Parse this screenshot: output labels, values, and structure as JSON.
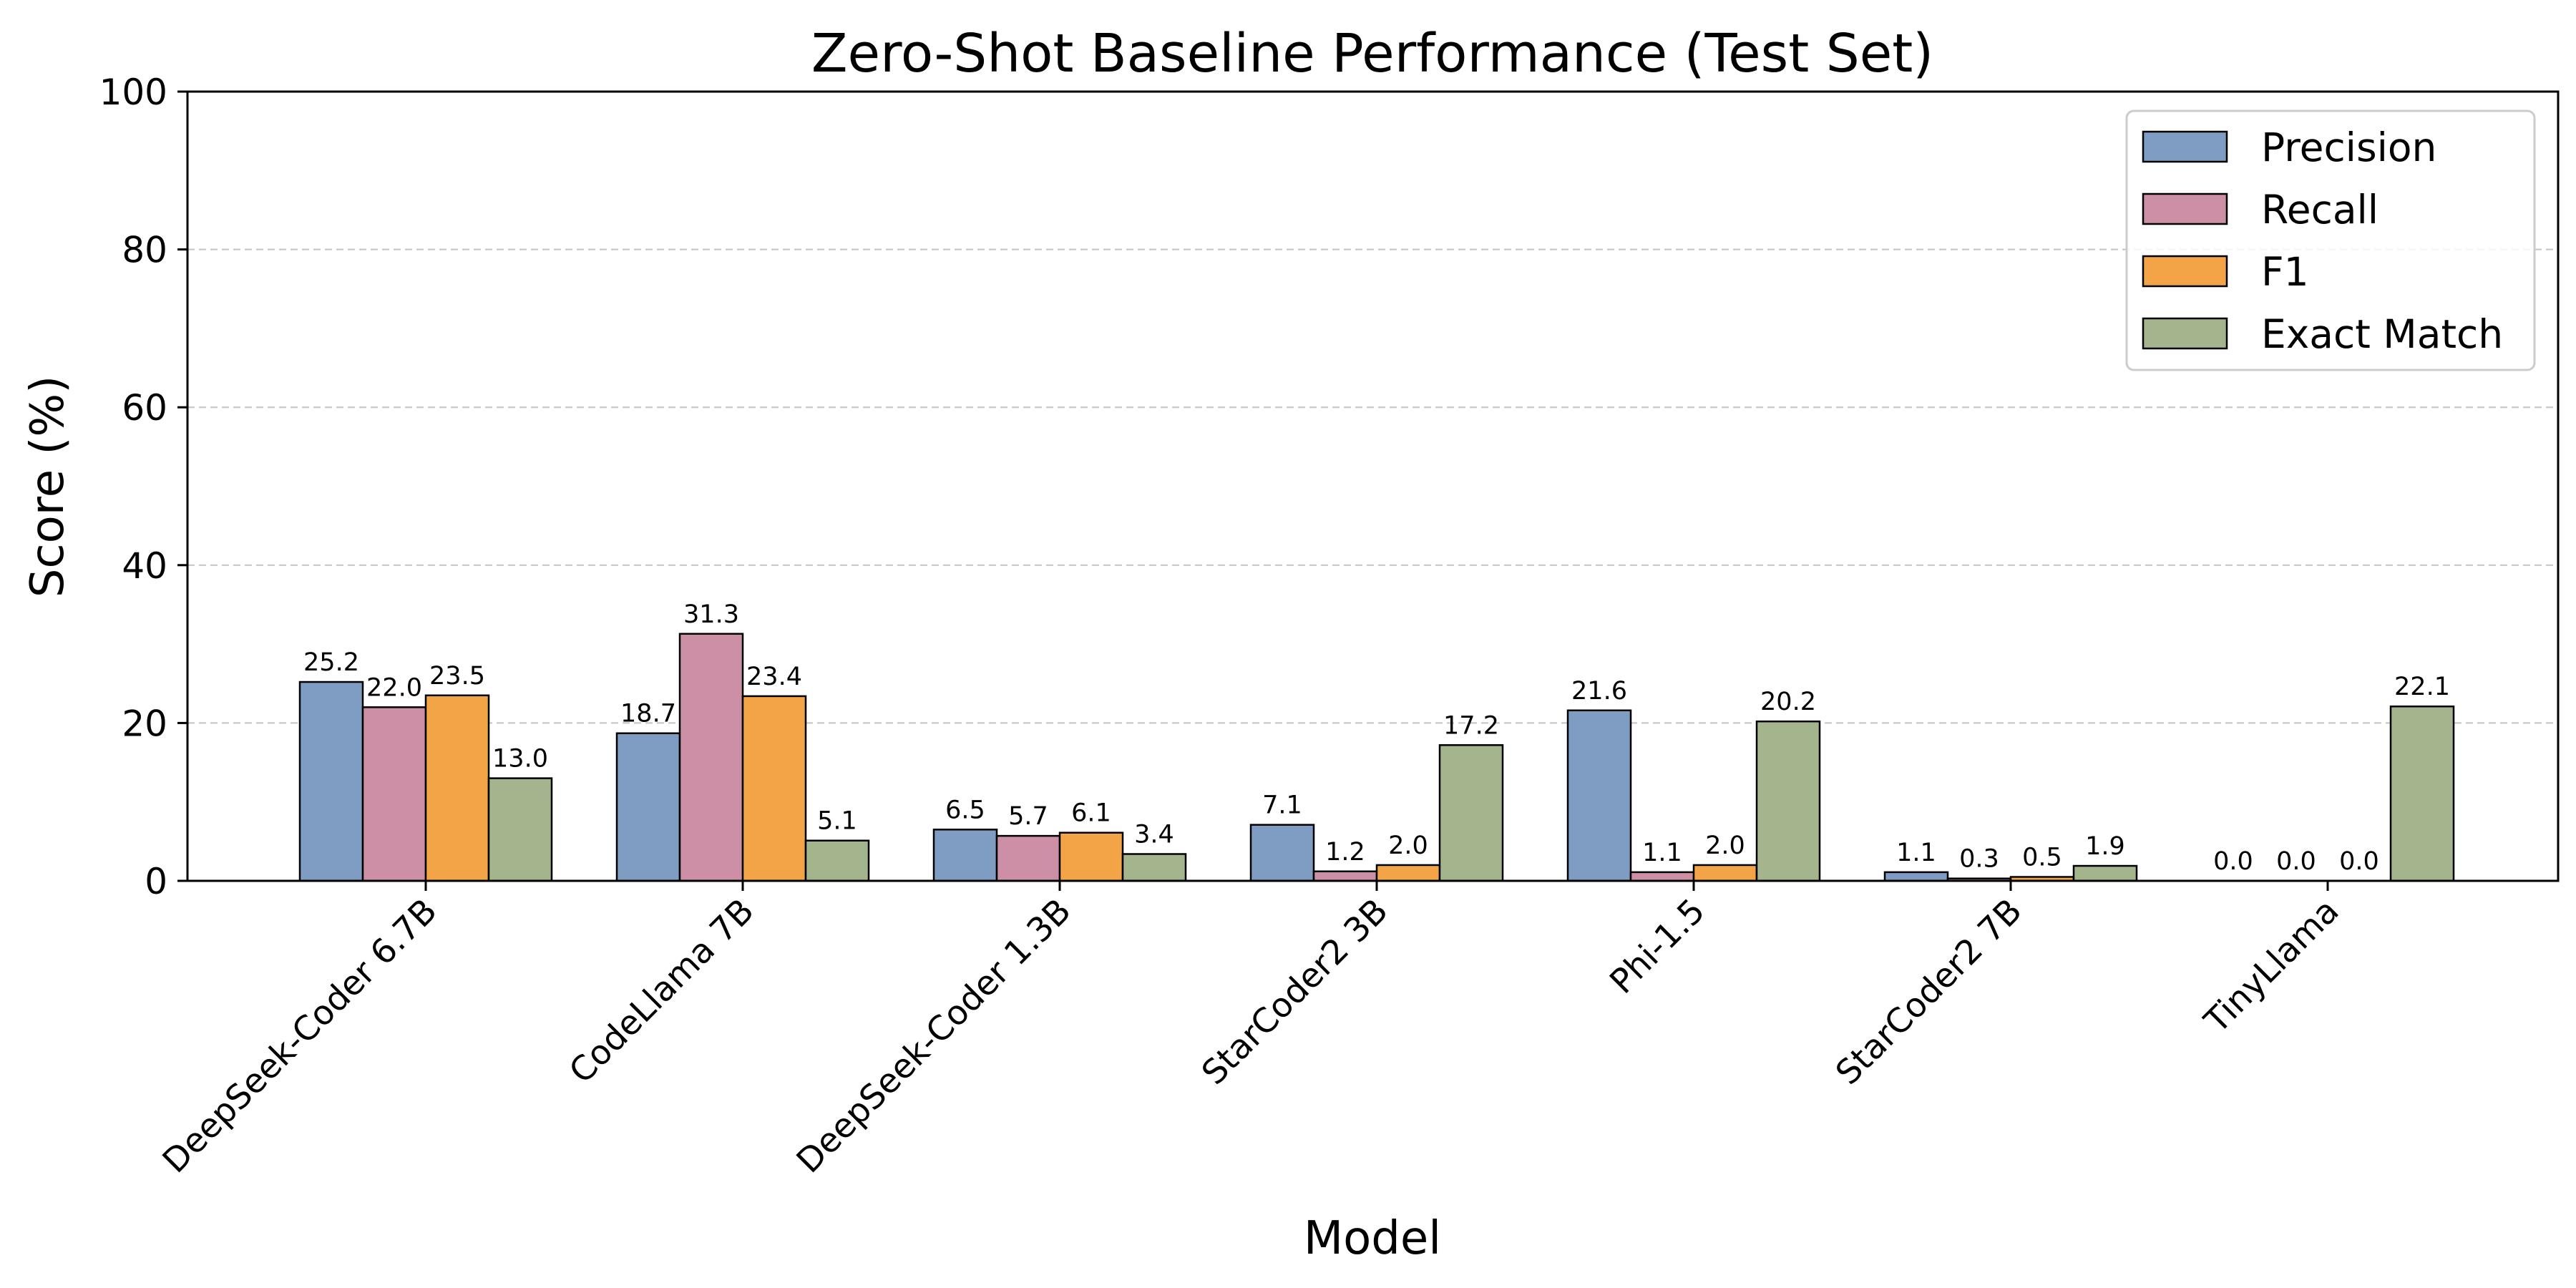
{
  "chart_data": {
    "type": "bar",
    "title": "Zero-Shot Baseline Performance (Test Set)",
    "xlabel": "Model",
    "ylabel": "Score (%)",
    "ylim": [
      0,
      100
    ],
    "yticks": [
      0,
      20,
      40,
      60,
      80,
      100
    ],
    "grid": true,
    "legend_position": "top-right",
    "categories": [
      "DeepSeek-Coder 6.7B",
      "CodeLlama 7B",
      "DeepSeek-Coder 1.3B",
      "StarCoder2 3B",
      "Phi-1.5",
      "StarCoder2 7B",
      "TinyLlama"
    ],
    "series": [
      {
        "name": "Precision",
        "color": "#7f9dc3",
        "values": [
          25.2,
          18.7,
          6.5,
          7.1,
          21.6,
          1.1,
          0.0
        ]
      },
      {
        "name": "Recall",
        "color": "#cc8fa5",
        "values": [
          22.0,
          31.3,
          5.7,
          1.2,
          1.1,
          0.3,
          0.0
        ]
      },
      {
        "name": "F1",
        "color": "#f2a447",
        "values": [
          23.5,
          23.4,
          6.1,
          2.0,
          2.0,
          0.5,
          0.0
        ]
      },
      {
        "name": "Exact Match",
        "color": "#a4b48d",
        "values": [
          13.0,
          5.1,
          3.4,
          17.2,
          20.2,
          1.9,
          22.1
        ]
      }
    ]
  }
}
